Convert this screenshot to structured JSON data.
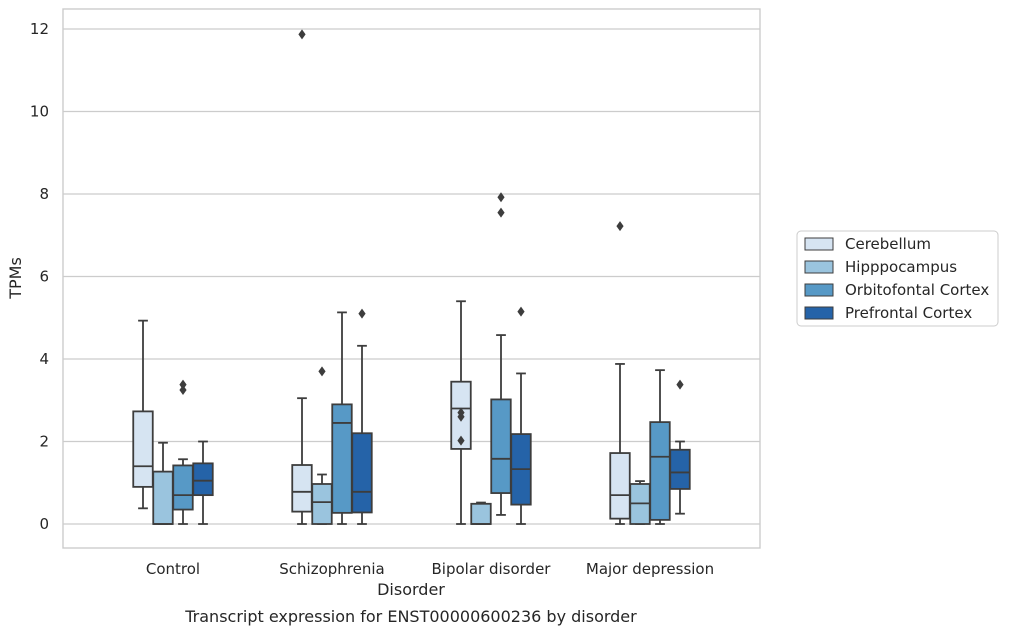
{
  "caption": "Transcript expression for ENST00000600236 by disorder",
  "chart_data": {
    "type": "box",
    "title": "",
    "xlabel": "Disorder",
    "ylabel": "TPMs",
    "ylim": [
      -0.6,
      12.5
    ],
    "yticks": [
      0,
      2,
      4,
      6,
      8,
      10,
      12
    ],
    "grid": "horizontal",
    "legend_position": "right",
    "categories": [
      "Control",
      "Schizophrenia",
      "Bipolar disorder",
      "Major depression"
    ],
    "series": [
      {
        "name": "Cerebellum",
        "color": "#d6e4f2",
        "boxes": [
          {
            "whislo": 0.38,
            "q1": 0.9,
            "med": 1.4,
            "q3": 2.73,
            "whishi": 4.93,
            "fliers": []
          },
          {
            "whislo": 0.0,
            "q1": 0.3,
            "med": 0.78,
            "q3": 1.43,
            "whishi": 3.05,
            "fliers": [
              11.87
            ]
          },
          {
            "whislo": 0.0,
            "q1": 1.82,
            "med": 2.8,
            "q3": 3.45,
            "whishi": 5.4,
            "fliers": [
              2.02,
              2.6,
              2.7
            ]
          },
          {
            "whislo": 0.0,
            "q1": 0.13,
            "med": 0.7,
            "q3": 1.72,
            "whishi": 3.88,
            "fliers": [
              7.22
            ]
          }
        ]
      },
      {
        "name": "Hipppocampus",
        "color": "#9ac4de",
        "boxes": [
          {
            "whislo": 0.0,
            "q1": 0.0,
            "med": 0.0,
            "q3": 1.27,
            "whishi": 1.97,
            "fliers": []
          },
          {
            "whislo": 0.0,
            "q1": 0.0,
            "med": 0.53,
            "q3": 0.97,
            "whishi": 1.2,
            "fliers": [
              3.7
            ]
          },
          {
            "whislo": 0.0,
            "q1": 0.0,
            "med": 0.0,
            "q3": 0.49,
            "whishi": 0.52,
            "fliers": []
          },
          {
            "whislo": 0.0,
            "q1": 0.0,
            "med": 0.5,
            "q3": 0.97,
            "whishi": 1.04,
            "fliers": []
          }
        ]
      },
      {
        "name": "Orbitofontal Cortex",
        "color": "#5799c6",
        "boxes": [
          {
            "whislo": 0.0,
            "q1": 0.35,
            "med": 0.7,
            "q3": 1.42,
            "whishi": 1.57,
            "fliers": [
              3.25,
              3.38
            ]
          },
          {
            "whislo": 0.0,
            "q1": 0.27,
            "med": 2.45,
            "q3": 2.9,
            "whishi": 5.13,
            "fliers": []
          },
          {
            "whislo": 0.22,
            "q1": 0.75,
            "med": 1.58,
            "q3": 3.02,
            "whishi": 4.58,
            "fliers": [
              7.55,
              7.92
            ]
          },
          {
            "whislo": 0.0,
            "q1": 0.1,
            "med": 1.63,
            "q3": 2.47,
            "whishi": 3.73,
            "fliers": []
          }
        ]
      },
      {
        "name": "Prefrontal Cortex",
        "color": "#2563a8",
        "boxes": [
          {
            "whislo": 0.0,
            "q1": 0.7,
            "med": 1.05,
            "q3": 1.47,
            "whishi": 2.0,
            "fliers": []
          },
          {
            "whislo": 0.0,
            "q1": 0.28,
            "med": 0.78,
            "q3": 2.2,
            "whishi": 4.32,
            "fliers": [
              5.1
            ]
          },
          {
            "whislo": 0.0,
            "q1": 0.47,
            "med": 1.33,
            "q3": 2.18,
            "whishi": 3.65,
            "fliers": [
              5.15
            ]
          },
          {
            "whislo": 0.25,
            "q1": 0.85,
            "med": 1.25,
            "q3": 1.8,
            "whishi": 2.0,
            "fliers": [
              3.38
            ]
          }
        ]
      }
    ]
  }
}
